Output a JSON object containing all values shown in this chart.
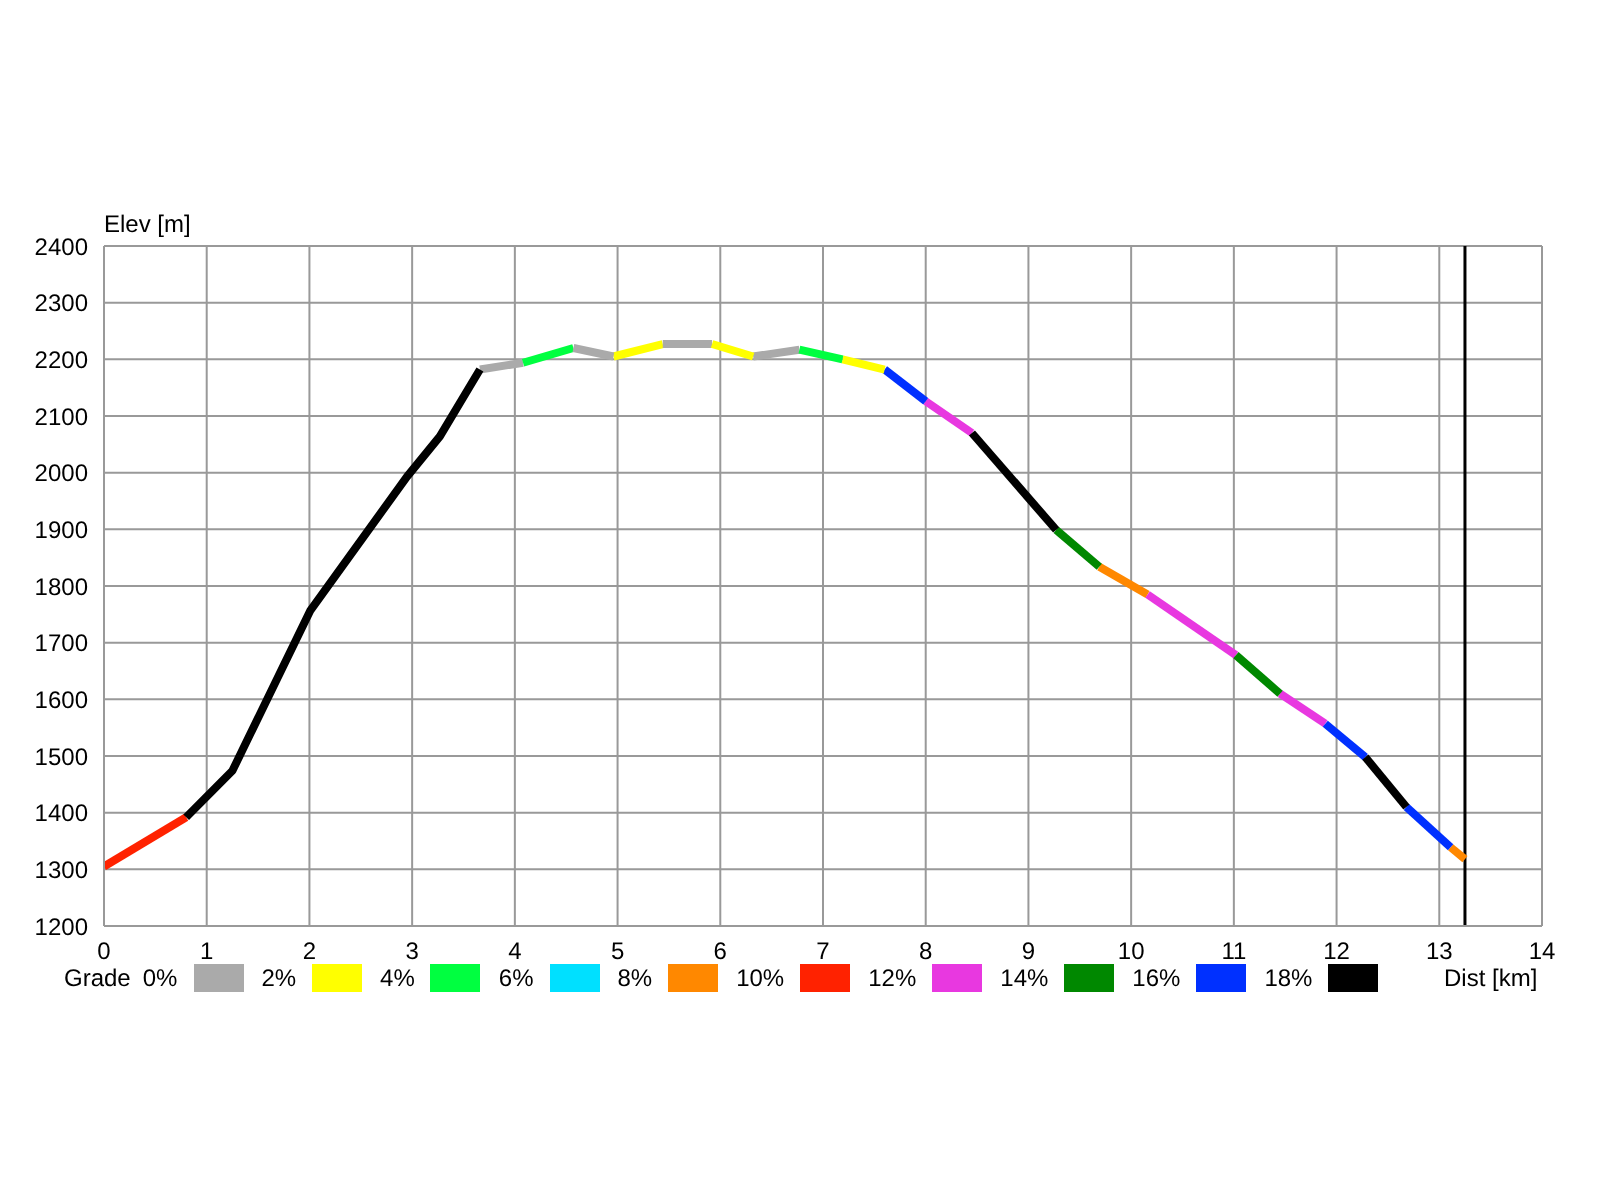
{
  "chart_data": {
    "type": "line",
    "xlabel": "Dist [km]",
    "ylabel": "Elev [m]",
    "legend_title": "Grade",
    "legend": "bottom",
    "grid": true,
    "xlim": [
      0,
      14
    ],
    "xticks": [
      0,
      1,
      2,
      3,
      4,
      5,
      6,
      7,
      8,
      9,
      10,
      11,
      12,
      13,
      14
    ],
    "ylim": [
      1200,
      2400
    ],
    "yticks": [
      1200,
      1300,
      1400,
      1500,
      1600,
      1700,
      1800,
      1900,
      2000,
      2100,
      2200,
      2300,
      2400
    ],
    "ref_lines": [
      {
        "axis": "x",
        "value": 13.25,
        "color": "#000000"
      }
    ],
    "series": [
      {
        "name": "0%",
        "color": "#aaaaaa",
        "x": [
          3.66,
          4.08
        ],
        "values": [
          2182,
          2194
        ]
      },
      {
        "name": "2%",
        "color": "#ffff00",
        "x": [
          4.96,
          5.44
        ],
        "values": [
          2205,
          2227
        ]
      },
      {
        "name": "4%",
        "color": "#00ff40",
        "x": [
          4.08,
          4.57
        ],
        "values": [
          2194,
          2220
        ]
      },
      {
        "name": "6%",
        "color": "#00e0ff"
      },
      {
        "name": "8%",
        "color": "#ff8800",
        "x": [
          9.69,
          10.16
        ],
        "values": [
          1834,
          1785
        ]
      },
      {
        "name": "10%",
        "color": "#ff2200",
        "x": [
          0,
          0.8
        ],
        "values": [
          1305,
          1392
        ]
      },
      {
        "name": "12%",
        "color": "#e838e0",
        "x": [
          8.0,
          8.45
        ],
        "values": [
          2126,
          2070
        ]
      },
      {
        "name": "14%",
        "color": "#008800",
        "x": [
          9.27,
          9.69
        ],
        "values": [
          1899,
          1834
        ]
      },
      {
        "name": "16%",
        "color": "#0030ff",
        "x": [
          7.6,
          8.0
        ],
        "values": [
          2182,
          2126
        ]
      },
      {
        "name": "18%",
        "color": "#000000",
        "x": [
          0.8,
          1.25,
          2.01,
          2.95,
          3.27,
          3.66
        ],
        "values": [
          1392,
          1474,
          1757,
          1993,
          2064,
          2182
        ]
      },
      {
        "color": "#aaaaaa",
        "x": [
          4.57,
          4.96
        ],
        "values": [
          2220,
          2205
        ]
      },
      {
        "color": "#aaaaaa",
        "x": [
          5.44,
          5.92
        ],
        "values": [
          2227,
          2227
        ]
      },
      {
        "color": "#aaaaaa",
        "x": [
          6.32,
          6.77
        ],
        "values": [
          2205,
          2217
        ]
      },
      {
        "color": "#ffff00",
        "x": [
          5.92,
          6.32
        ],
        "values": [
          2227,
          2205
        ]
      },
      {
        "color": "#ffff00",
        "x": [
          7.19,
          7.6
        ],
        "values": [
          2200,
          2182
        ]
      },
      {
        "color": "#00ff40",
        "x": [
          6.77,
          7.19
        ],
        "values": [
          2217,
          2200
        ]
      },
      {
        "color": "#ff8800",
        "x": [
          13.11,
          13.25
        ],
        "values": [
          1339,
          1318
        ]
      },
      {
        "color": "#e838e0",
        "x": [
          10.16,
          11.02
        ],
        "values": [
          1785,
          1678
        ]
      },
      {
        "color": "#e838e0",
        "x": [
          11.45,
          11.89
        ],
        "values": [
          1610,
          1557
        ]
      },
      {
        "color": "#008800",
        "x": [
          11.02,
          11.45
        ],
        "values": [
          1678,
          1610
        ]
      },
      {
        "color": "#0030ff",
        "x": [
          11.89,
          12.28
        ],
        "values": [
          1557,
          1498
        ]
      },
      {
        "color": "#0030ff",
        "x": [
          12.68,
          13.11
        ],
        "values": [
          1410,
          1339
        ]
      },
      {
        "color": "#000000",
        "x": [
          8.45,
          9.27
        ],
        "values": [
          2070,
          1899
        ]
      },
      {
        "color": "#000000",
        "x": [
          12.28,
          12.68
        ],
        "values": [
          1498,
          1410
        ]
      }
    ]
  }
}
